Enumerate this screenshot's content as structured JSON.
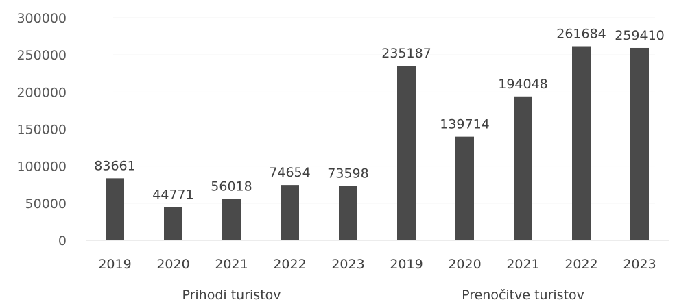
{
  "chart_data": {
    "type": "bar",
    "title": "",
    "xlabel": "",
    "ylabel": "",
    "ylim": [
      0,
      300000
    ],
    "yticks": [
      0,
      50000,
      100000,
      150000,
      200000,
      250000,
      300000
    ],
    "ytick_labels": [
      "0",
      "50000",
      "100000",
      "150000",
      "200000",
      "250000",
      "300000"
    ],
    "grid": true,
    "legend": "none",
    "groups": [
      {
        "label": "Prihodi turistov",
        "categories": [
          "2019",
          "2020",
          "2021",
          "2022",
          "2023"
        ],
        "values": [
          83661,
          44771,
          56018,
          74654,
          73598
        ]
      },
      {
        "label": "Prenočitve turistov",
        "categories": [
          "2019",
          "2020",
          "2021",
          "2022",
          "2023"
        ],
        "values": [
          235187,
          139714,
          194048,
          261684,
          259410
        ]
      }
    ],
    "bar_color": "#4a4a4a"
  }
}
